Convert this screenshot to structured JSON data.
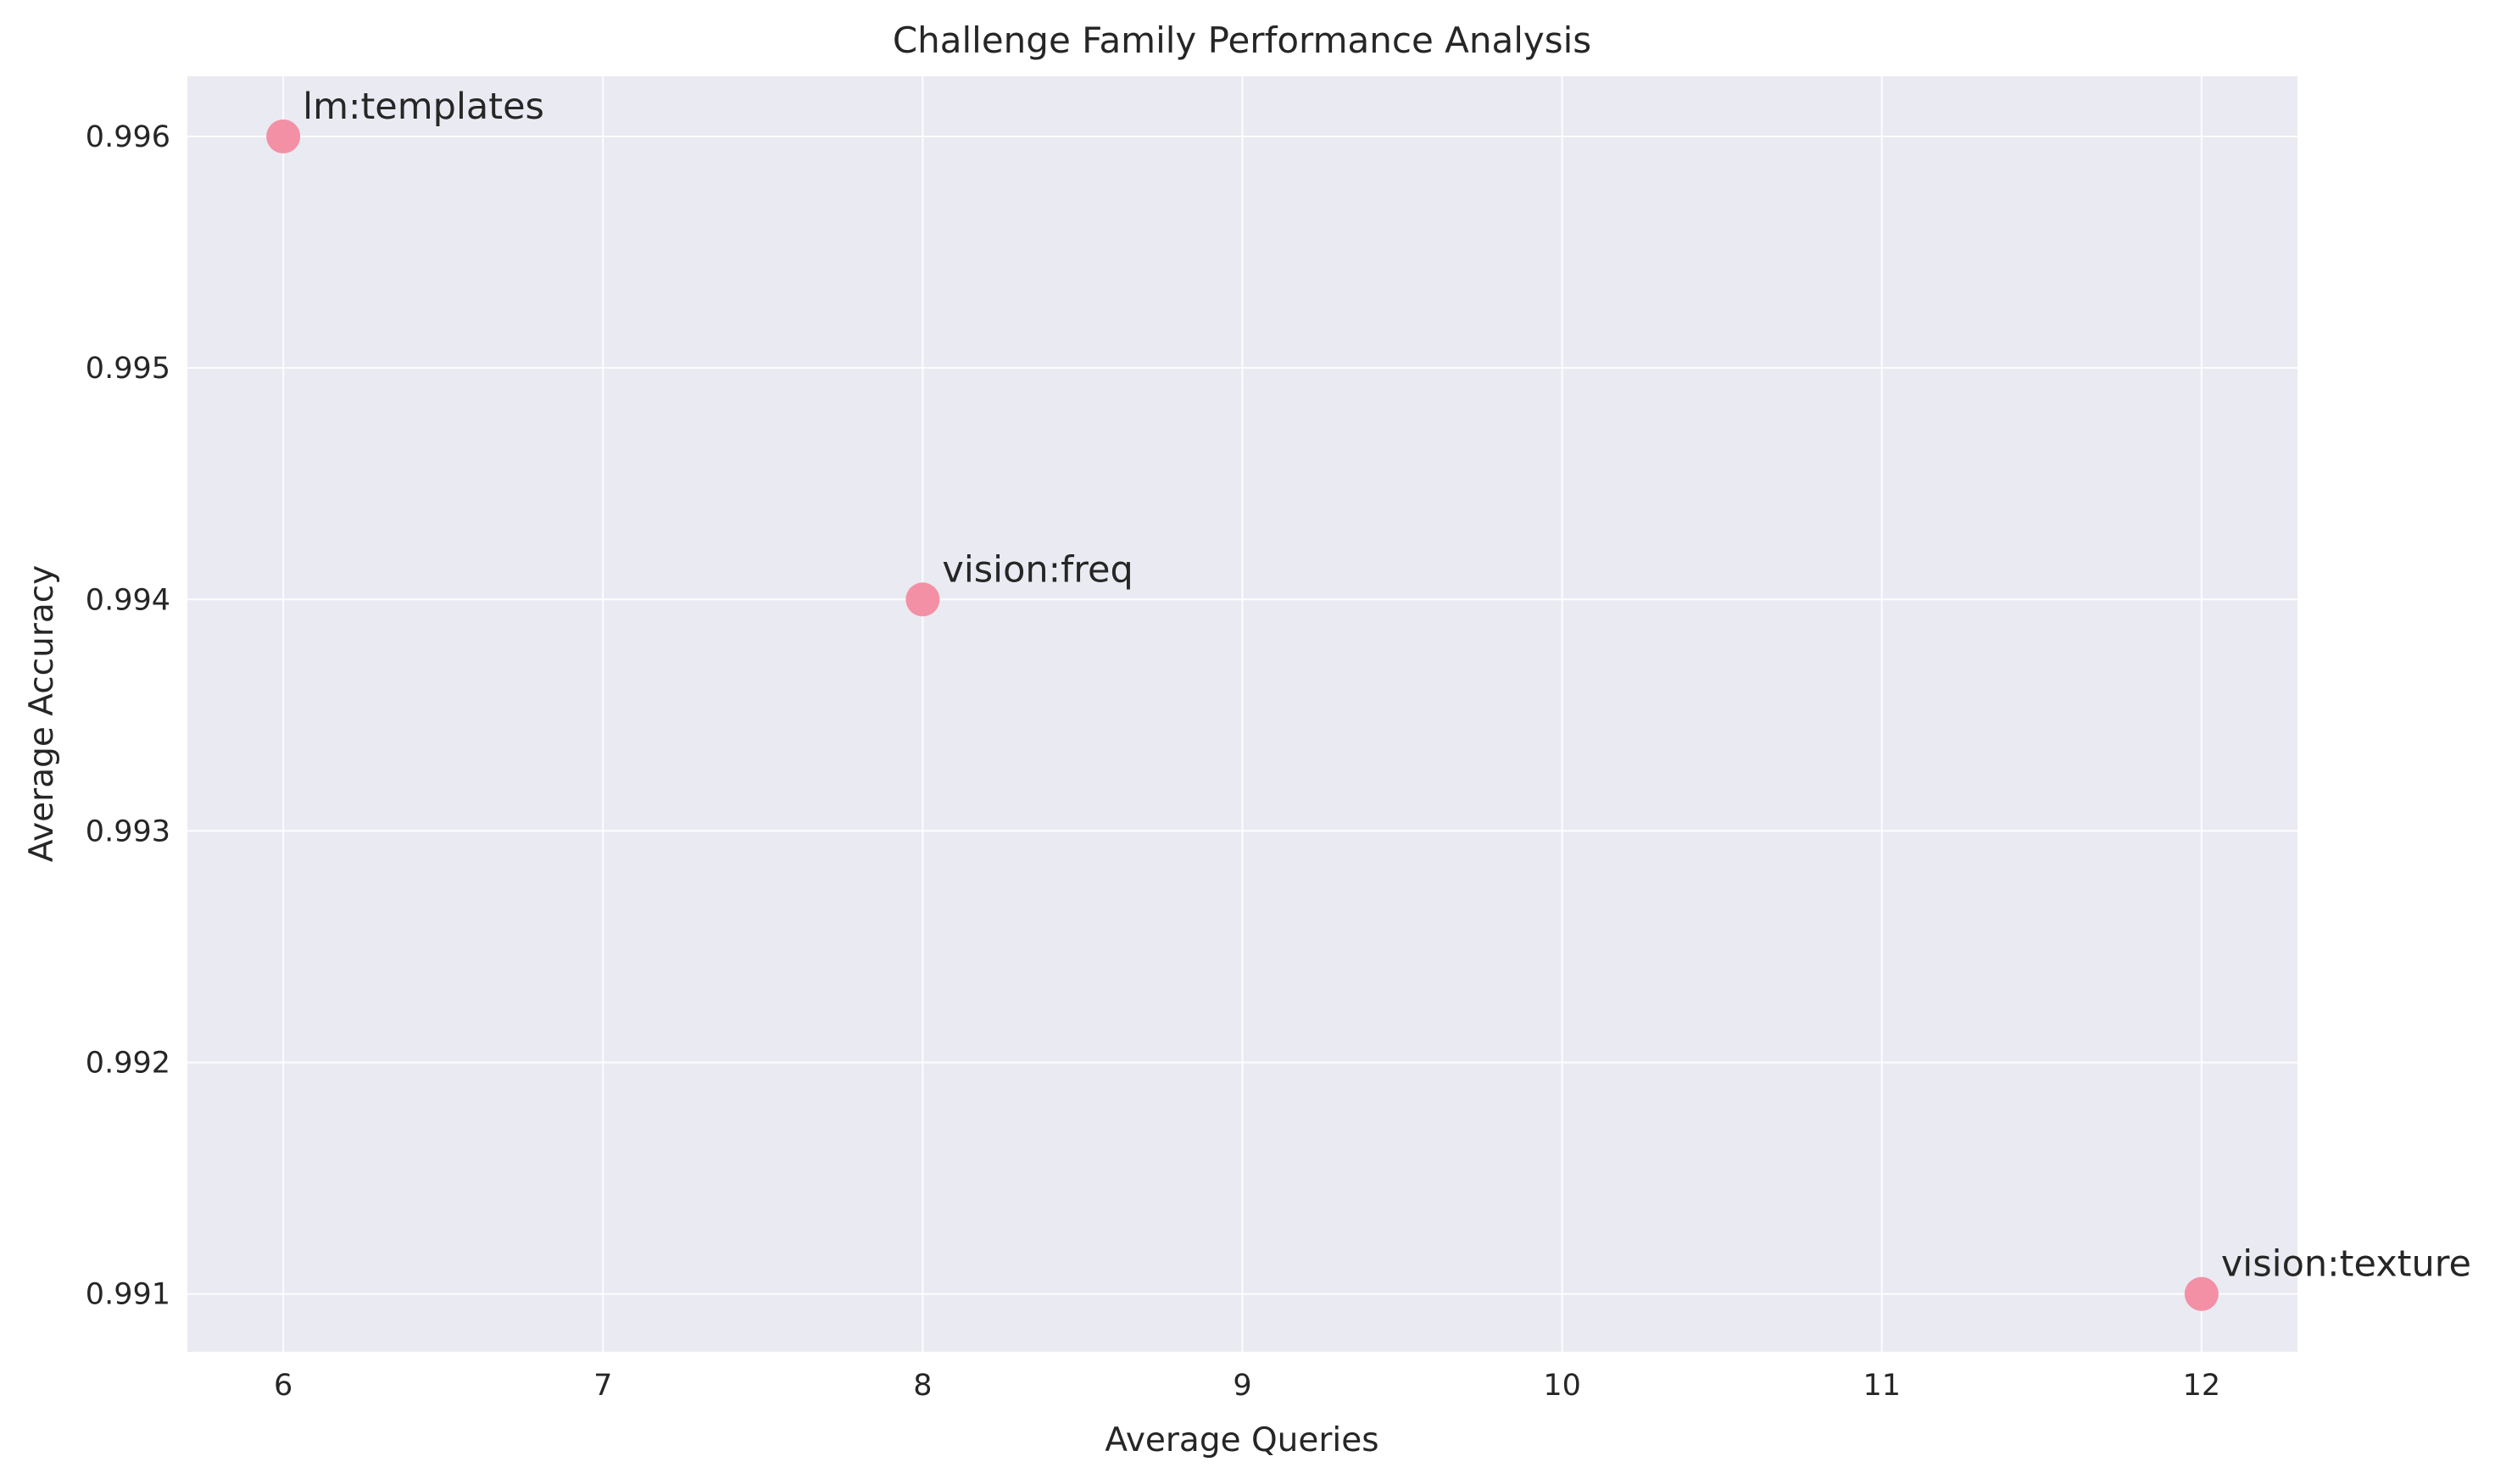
{
  "chart_data": {
    "type": "scatter",
    "title": "Challenge Family Performance Analysis",
    "xlabel": "Average Queries",
    "ylabel": "Average Accuracy",
    "xlim": [
      5.7,
      12.3
    ],
    "ylim": [
      0.99075,
      0.99626
    ],
    "xticks": [
      6,
      7,
      8,
      9,
      10,
      11,
      12
    ],
    "yticks": [
      0.991,
      0.992,
      0.993,
      0.994,
      0.995,
      0.996
    ],
    "ytick_labels": [
      "0.991",
      "0.992",
      "0.993",
      "0.994",
      "0.995",
      "0.996"
    ],
    "grid": true,
    "colors": {
      "plot_background": "#eaeaf2",
      "grid": "#ffffff",
      "marker": "#f38ba0",
      "text": "#262626"
    },
    "points": [
      {
        "label": "lm:templates",
        "x": 6,
        "y": 0.996
      },
      {
        "label": "vision:freq",
        "x": 8,
        "y": 0.994
      },
      {
        "label": "vision:texture",
        "x": 12,
        "y": 0.991
      }
    ]
  }
}
